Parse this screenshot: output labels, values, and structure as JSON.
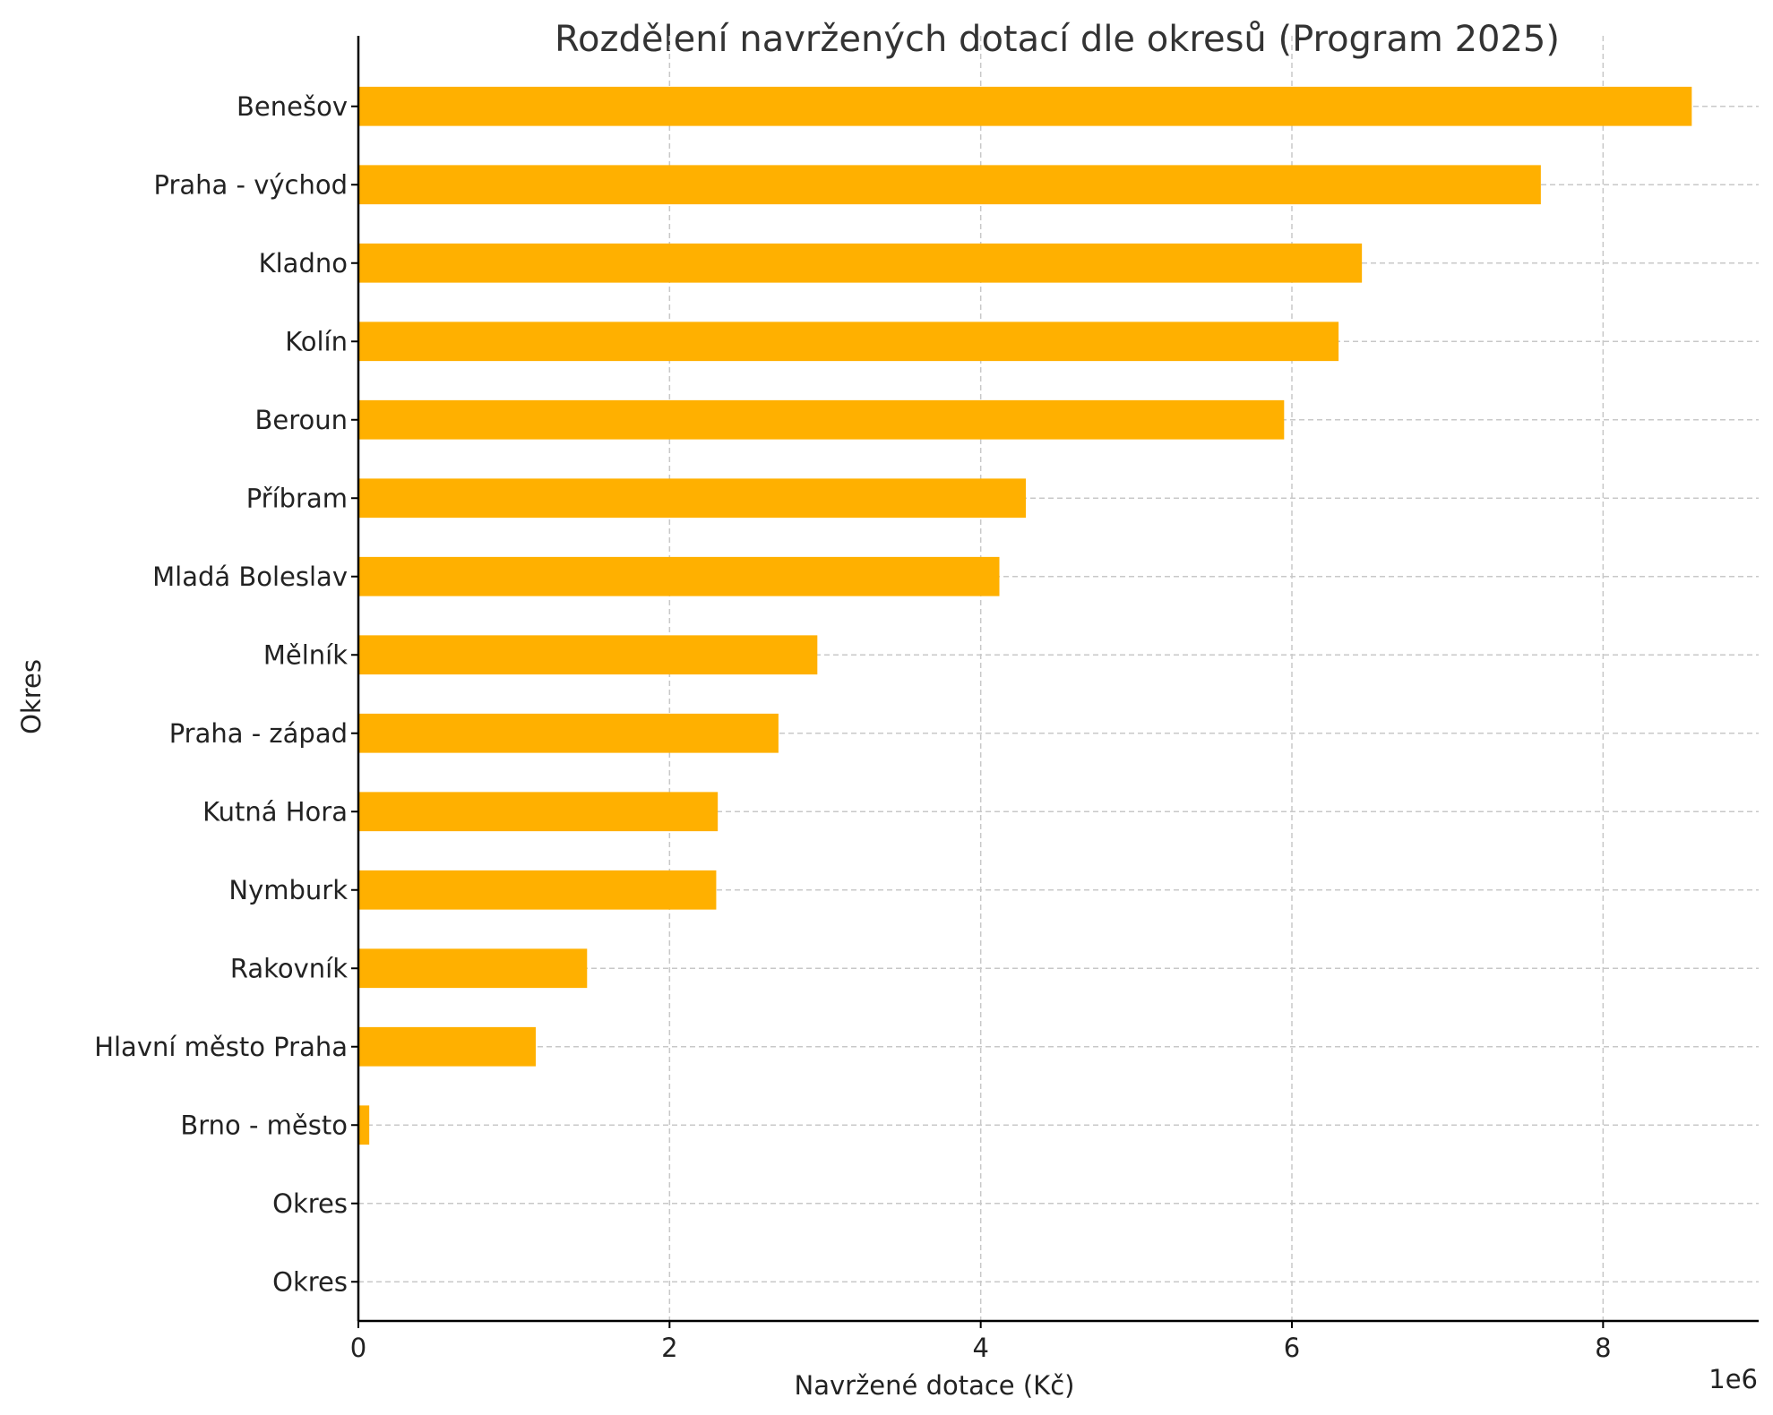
{
  "chart_data": {
    "type": "bar",
    "orientation": "horizontal",
    "title": "Rozdělení navržených dotací dle okresů (Program 2025)",
    "xlabel": "Navržené dotace (Kč)",
    "ylabel": "Okres",
    "x_offset_label": "1e6",
    "x_scale": 1000000,
    "xlim": [
      0,
      9000000
    ],
    "x_ticks": [
      0,
      2000000,
      4000000,
      6000000,
      8000000
    ],
    "x_tick_labels": [
      "0",
      "2",
      "4",
      "6",
      "8"
    ],
    "grid": true,
    "bar_color": "#FFB000",
    "categories": [
      "Benešov",
      "Praha - východ",
      "Kladno",
      "Kolín",
      "Beroun",
      "Příbram",
      "Mladá Boleslav",
      "Mělník",
      "Praha - západ",
      "Kutná Hora",
      "Nymburk",
      "Rakovník",
      "Hlavní město Praha",
      "Brno - město",
      "Okres",
      "Okres "
    ],
    "values": [
      8570000,
      7600000,
      6450000,
      6300000,
      5950000,
      4290000,
      4120000,
      2950000,
      2700000,
      2310000,
      2300000,
      1470000,
      1140000,
      70000,
      0,
      0
    ]
  }
}
